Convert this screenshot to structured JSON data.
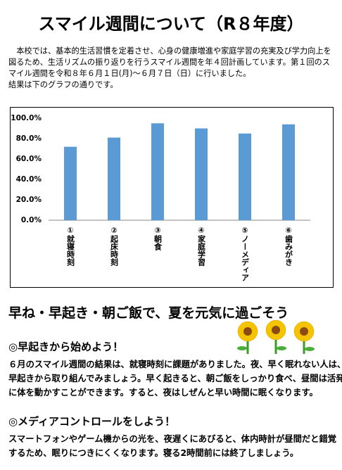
{
  "header": {
    "title": "スマイル週間について（R８年度）"
  },
  "intro": {
    "lines": [
      "　本校では、基本的生活習慣を定着させ、心身の健康増進や家庭学習の充実及び学力向上を",
      "図るため、生活リズムの振り返りを行うスマイル週間を年４回計画しています。第１回のス",
      "マイル週間を令和８年６月１日(月)～６月７日（日）に行いました。",
      "結果は下のグラフの通りです。"
    ]
  },
  "chart_data": {
    "type": "bar",
    "categories": [
      "①就寝時刻",
      "②起床時刻",
      "③朝食",
      "④家庭学習",
      "⑤ノーメディア",
      "⑥歯みがき"
    ],
    "values": [
      72,
      81,
      95,
      90,
      85,
      94
    ],
    "color": "#5b9bd5",
    "ylim": [
      0,
      100
    ],
    "yticks": [
      {
        "value": 0,
        "label": "0.0%"
      },
      {
        "value": 20,
        "label": "20.0%"
      },
      {
        "value": 40,
        "label": "40.0%"
      },
      {
        "value": 60,
        "label": "60.0%"
      },
      {
        "value": 80,
        "label": "80.0%"
      },
      {
        "value": 100,
        "label": "100.0%"
      }
    ],
    "grid": false
  },
  "section": {
    "heading": "早ね・早起き・朝ご飯で、夏を元気に過ごそう",
    "items": [
      {
        "heading": "◎早起きから始めよう！",
        "lines": [
          "６月のスマイル週間の結果は、就寝時刻に課題がありました。夜、早く眠れない人は、",
          "早起きから取り組んでみましょう。早く起きると、朝ご飯をしっかり食べ、昼間は活発",
          "に体を動かすことができます。すると、夜はしぜんと早い時間に眠くなります。"
        ]
      },
      {
        "heading": "◎メディアコントロールをしよう！",
        "lines": [
          "スマートフォンやゲーム機からの光を、夜遅くにあびると、体内時計が昼間だと錯覚",
          "するため、眠りにつきにくくなります。寝る2時間前には終了しましょう。"
        ]
      }
    ]
  }
}
